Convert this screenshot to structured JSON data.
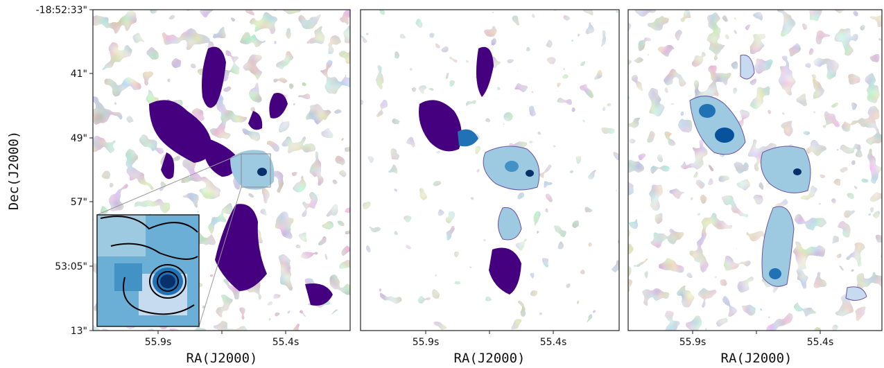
{
  "figure": {
    "y_axis": {
      "label": "Dec(J2000)",
      "ticks": [
        "-18:52:33\"",
        "41\"",
        "49\"",
        "57\"",
        "53:05\"",
        "13\""
      ]
    },
    "x_axis": {
      "label": "RA(J2000)",
      "ticks": [
        "55.9s",
        "55.4s"
      ]
    },
    "panels": [
      {
        "name": "left",
        "has_inset": true
      },
      {
        "name": "middle",
        "has_inset": false
      },
      {
        "name": "right",
        "has_inset": false
      }
    ],
    "colors": {
      "dark_purple": "#45007f",
      "mid_purple": "#6a51a3",
      "light_purple": "#b8b4dc",
      "pale_blue": "#c6dbef",
      "mid_blue": "#6baed6",
      "dark_blue": "#2171b5",
      "navy": "#08306b",
      "frame": "#222222"
    }
  }
}
